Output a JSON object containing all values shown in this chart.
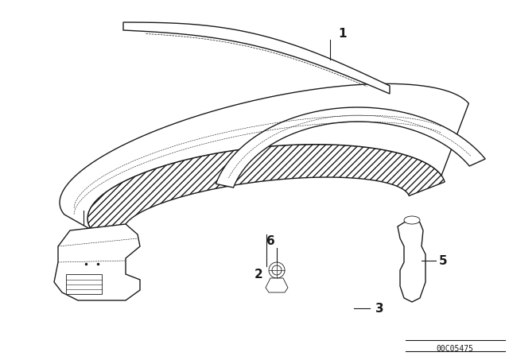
{
  "bg_color": "#ffffff",
  "line_color": "#1a1a1a",
  "watermark": "00C05475",
  "label_fontsize": 11,
  "watermark_fontsize": 7
}
